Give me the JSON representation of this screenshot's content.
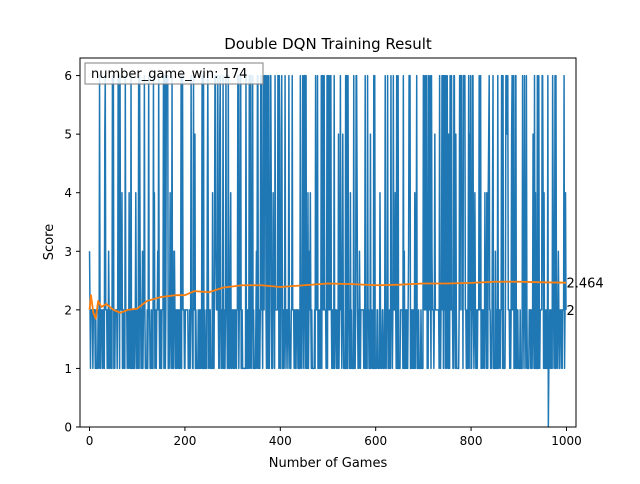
{
  "chart_data": {
    "type": "line",
    "title": "Double DQN Training Result",
    "xlabel": "Number of Games",
    "ylabel": "Score",
    "xlim": [
      -20,
      1020
    ],
    "ylim": [
      0,
      6.3
    ],
    "x_ticks": [
      0,
      200,
      400,
      600,
      800,
      1000
    ],
    "y_ticks": [
      0,
      1,
      2,
      3,
      4,
      5,
      6
    ],
    "grid": false,
    "annotation_box": {
      "text": "number_game_win: 174",
      "placement": "top-left"
    },
    "series": [
      {
        "color": "#1f77b4",
        "n_points": 1000,
        "values_summary": "per-game score, oscillating mostly between 1 and 2 with frequent spikes to 6 (and some 3, 4, 5); first game 3; a drop to 0 near game 962",
        "end_label": "2",
        "end_value": 2
      },
      {
        "color": "#ff7f0e",
        "x": [
          0,
          3,
          8,
          13,
          18,
          25,
          35,
          50,
          65,
          80,
          100,
          120,
          150,
          180,
          200,
          220,
          250,
          280,
          320,
          360,
          400,
          450,
          500,
          550,
          600,
          650,
          700,
          750,
          800,
          850,
          900,
          950,
          999
        ],
        "values": [
          2.0,
          2.25,
          1.95,
          1.85,
          2.15,
          2.05,
          2.1,
          2.0,
          1.95,
          2.0,
          2.02,
          2.15,
          2.22,
          2.25,
          2.25,
          2.32,
          2.3,
          2.38,
          2.42,
          2.42,
          2.39,
          2.42,
          2.45,
          2.44,
          2.42,
          2.43,
          2.45,
          2.45,
          2.46,
          2.48,
          2.48,
          2.47,
          2.464
        ],
        "end_label": "2.464",
        "end_value": 2.464
      }
    ]
  }
}
